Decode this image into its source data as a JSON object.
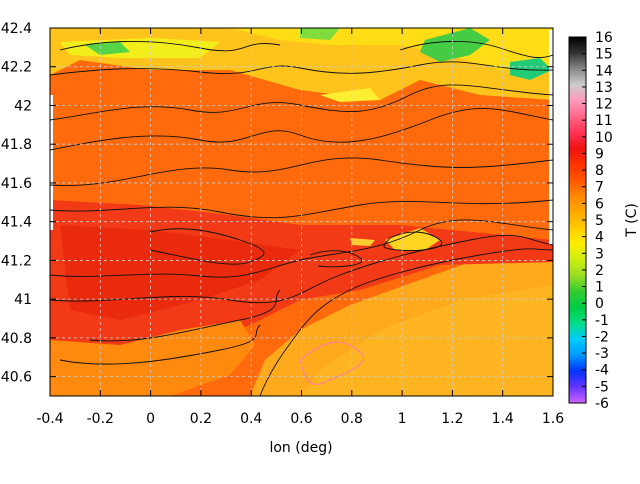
{
  "chart_data": {
    "type": "heatmap",
    "title": "",
    "xlabel": "lon (deg)",
    "ylabel": "",
    "colorbar_label": "T (C)",
    "xlim": [
      -0.4,
      1.6
    ],
    "ylim": [
      40.5,
      42.4
    ],
    "x_ticks": [
      -0.4,
      -0.2,
      0,
      0.2,
      0.4,
      0.6,
      0.8,
      1,
      1.2,
      1.4,
      1.6
    ],
    "x_tick_labels": [
      "-0.4",
      "-0.2",
      "0",
      "0.2",
      "0.4",
      "0.6",
      "0.8",
      "1",
      "1.2",
      "1.4",
      "1.6"
    ],
    "y_ticks": [
      40.6,
      40.8,
      41,
      41.2,
      41.4,
      41.6,
      41.8,
      42,
      42.2,
      42.4
    ],
    "y_tick_labels": [
      "40.6",
      "40.8",
      "41",
      "41.2",
      "41.4",
      "41.6",
      "41.8",
      "42",
      "42.2",
      "42.4"
    ],
    "grid": true,
    "contours": true,
    "colorbar": {
      "min": -6,
      "max": 16,
      "ticks": [
        -6,
        -5,
        -4,
        -3,
        -2,
        -1,
        0,
        1,
        2,
        3,
        4,
        5,
        6,
        7,
        8,
        9,
        10,
        11,
        12,
        13,
        14,
        15,
        16
      ],
      "tick_labels": [
        "-6",
        "-5",
        "-4",
        "-3",
        "-2",
        "-1",
        "0",
        "1",
        "2",
        "3",
        "4",
        "5",
        "6",
        "7",
        "8",
        "9",
        "10",
        "11",
        "12",
        "13",
        "14",
        "15",
        "16"
      ],
      "colors": [
        "#cc66ff",
        "#6633ff",
        "#0033ff",
        "#0099ff",
        "#00ccff",
        "#00dd88",
        "#00cc44",
        "#33cc33",
        "#99dd22",
        "#ccee11",
        "#ffee00",
        "#ffcc00",
        "#ffaa00",
        "#ff8800",
        "#ff5500",
        "#ff3300",
        "#ee1111",
        "#ff3355",
        "#ff6688",
        "#ff99bb",
        "#cccccc",
        "#888888",
        "#333333",
        "#000000"
      ]
    }
  }
}
